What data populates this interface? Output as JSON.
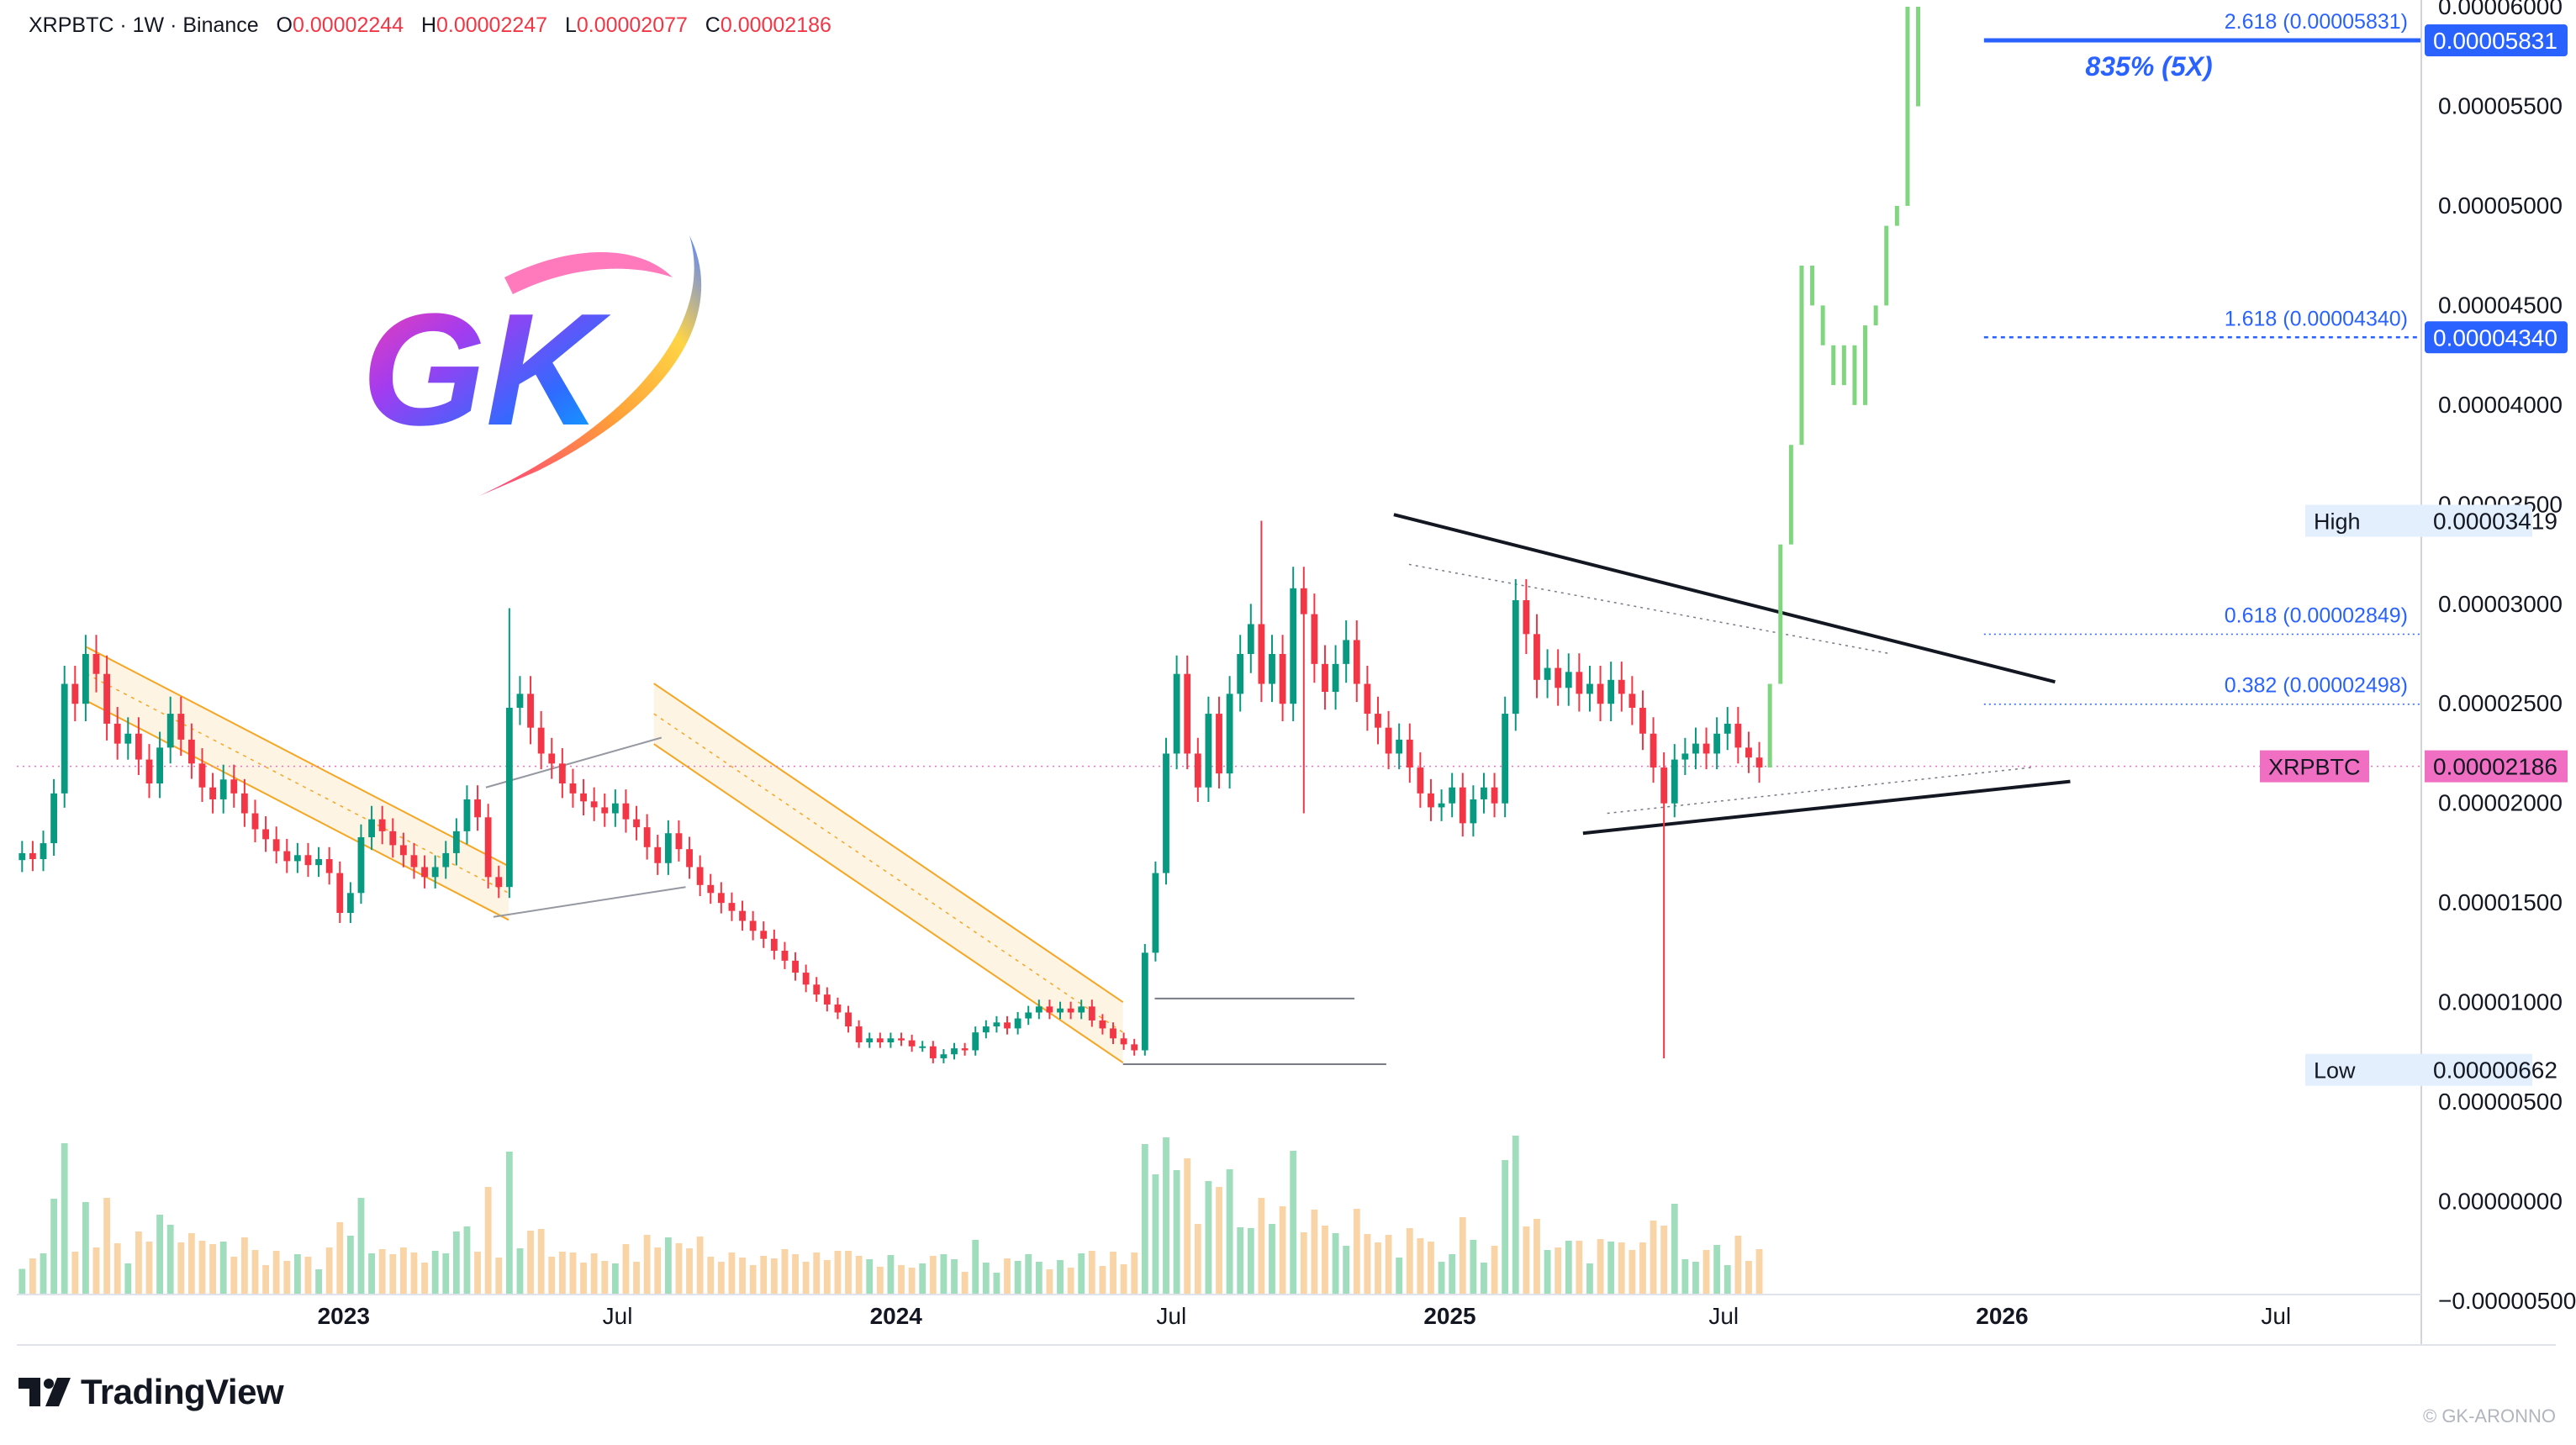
{
  "header": {
    "symbol": "XRPBTC",
    "separator1": " · ",
    "interval": "1W",
    "separator2": " · ",
    "exchange": "Binance",
    "open_label": "O",
    "open": "0.00002244",
    "high_label": "H",
    "high": "0.00002247",
    "low_label": "L",
    "low": "0.00002077",
    "close_label": "C",
    "close": "0.00002186"
  },
  "logo": {
    "text": "GK"
  },
  "brand": {
    "name": "TradingView"
  },
  "watermark": "© GK-ARONNO",
  "colors": {
    "up": "#089981",
    "down": "#f23645",
    "projection": "#7fd67f",
    "fib": "#2962ff",
    "channel": "#f5a623",
    "price_badge": "#f06fc3"
  },
  "chart_data": {
    "type": "candlestick",
    "title": "",
    "interval": "1W",
    "y_axis": {
      "min": -5e-06,
      "max": 6e-05,
      "ticks": [
        "0.00006000",
        "0.00005500",
        "0.00005000",
        "0.00004500",
        "0.00004000",
        "0.00003500",
        "0.00003000",
        "0.00002500",
        "0.00002000",
        "0.00001500",
        "0.00001000",
        "0.00000500",
        "0.00000000",
        "−0.00000500"
      ],
      "tick_values": [
        6e-05,
        5.5e-05,
        5e-05,
        4.5e-05,
        4e-05,
        3.5e-05,
        3e-05,
        2.5e-05,
        2e-05,
        1.5e-05,
        1e-05,
        5e-06,
        0,
        -5e-06
      ]
    },
    "x_axis": {
      "start": "2022-05-30",
      "end": "2026-10-05",
      "ticks": [
        {
          "label": "2023",
          "date": "2023-01-01",
          "bold": true
        },
        {
          "label": "Jul",
          "date": "2023-07-01",
          "bold": false
        },
        {
          "label": "2024",
          "date": "2024-01-01",
          "bold": true
        },
        {
          "label": "Jul",
          "date": "2024-07-01",
          "bold": false
        },
        {
          "label": "2025",
          "date": "2025-01-01",
          "bold": true
        },
        {
          "label": "Jul",
          "date": "2025-07-01",
          "bold": false
        },
        {
          "label": "2026",
          "date": "2026-01-01",
          "bold": true
        },
        {
          "label": "Jul",
          "date": "2026-07-01",
          "bold": false
        }
      ]
    },
    "price_labels": [
      {
        "label": "High",
        "value": "0.00003419",
        "price": 3.419e-05,
        "style": "extreme"
      },
      {
        "label": "XRPBTC",
        "value": "0.00002186",
        "price": 2.186e-05,
        "style": "current"
      },
      {
        "label": "Low",
        "value": "0.00000662",
        "price": 6.62e-06,
        "style": "extreme"
      }
    ],
    "fib_levels": [
      {
        "text": "2.618 (0.00005831)",
        "ratio": "2.618",
        "price": 5.831e-05,
        "badge": "0.00005831",
        "weight": "major"
      },
      {
        "text": "1.618 (0.00004340)",
        "ratio": "1.618",
        "price": 4.34e-05,
        "badge": "0.00004340",
        "weight": "dashed"
      },
      {
        "text": "0.618 (0.00002849)",
        "ratio": "0.618",
        "price": 2.849e-05,
        "badge": "",
        "weight": "dotted"
      },
      {
        "text": "0.382 (0.00002498)",
        "ratio": "0.382",
        "price": 2.498e-05,
        "badge": "",
        "weight": "dotted"
      }
    ],
    "annotation": "835% (5X)",
    "weekly_closes": [
      1.75e-05,
      1.72e-05,
      1.8e-05,
      2.05e-05,
      2.6e-05,
      2.5e-05,
      2.75e-05,
      2.65e-05,
      2.4e-05,
      2.3e-05,
      2.35e-05,
      2.22e-05,
      2.1e-05,
      2.28e-05,
      2.45e-05,
      2.32e-05,
      2.2e-05,
      2.08e-05,
      2.02e-05,
      2.12e-05,
      2.05e-05,
      1.95e-05,
      1.87e-05,
      1.82e-05,
      1.76e-05,
      1.71e-05,
      1.74e-05,
      1.69e-05,
      1.72e-05,
      1.65e-05,
      1.45e-05,
      1.55e-05,
      1.83e-05,
      1.92e-05,
      1.86e-05,
      1.79e-05,
      1.74e-05,
      1.68e-05,
      1.63e-05,
      1.68e-05,
      1.75e-05,
      1.86e-05,
      2.02e-05,
      1.93e-05,
      1.63e-05,
      1.58e-05,
      2.48e-05,
      2.55e-05,
      2.38e-05,
      2.25e-05,
      2.2e-05,
      2.1e-05,
      2.05e-05,
      2.01e-05,
      1.98e-05,
      1.95e-05,
      2e-05,
      1.92e-05,
      1.88e-05,
      1.78e-05,
      1.7e-05,
      1.85e-05,
      1.77e-05,
      1.68e-05,
      1.59e-05,
      1.55e-05,
      1.5e-05,
      1.46e-05,
      1.41e-05,
      1.36e-05,
      1.32e-05,
      1.26e-05,
      1.21e-05,
      1.15e-05,
      1.09e-05,
      1.04e-05,
      9.9e-06,
      9.5e-06,
      8.8e-06,
      8e-06,
      8.2e-06,
      8e-06,
      8.2e-06,
      8.1e-06,
      7.8e-06,
      7.8e-06,
      7.2e-06,
      7.4e-06,
      7.7e-06,
      7.6e-06,
      8.5e-06,
      8.8e-06,
      9e-06,
      8.7e-06,
      9.2e-06,
      9.5e-06,
      9.8e-06,
      9.5e-06,
      9.7e-06,
      9.5e-06,
      9.8e-06,
      9.1e-06,
      8.7e-06,
      8.2e-06,
      7.9e-06,
      7.6e-06,
      1.25e-05,
      1.65e-05,
      2.25e-05,
      2.65e-05,
      2.25e-05,
      2.08e-05,
      2.45e-05,
      2.15e-05,
      2.55e-05,
      2.75e-05,
      2.9e-05,
      2.6e-05,
      2.75e-05,
      2.5e-05,
      3.08e-05,
      2.95e-05,
      2.7e-05,
      2.56e-05,
      2.7e-05,
      2.82e-05,
      2.6e-05,
      2.45e-05,
      2.38e-05,
      2.25e-05,
      2.32e-05,
      2.18e-05,
      2.05e-05,
      1.98e-05,
      2e-05,
      2.08e-05,
      1.9e-05,
      2.02e-05,
      2.08e-05,
      2e-05,
      2.45e-05,
      3.02e-05,
      2.85e-05,
      2.62e-05,
      2.68e-05,
      2.58e-05,
      2.66e-05,
      2.55e-05,
      2.6e-05,
      2.5e-05,
      2.62e-05,
      2.55e-05,
      2.48e-05,
      2.35e-05,
      2.18e-05,
      2e-05,
      2.22e-05,
      2.25e-05,
      2.3e-05,
      2.25e-05,
      2.35e-05,
      2.4e-05,
      2.28e-05,
      2.23e-05,
      2.18e-05
    ],
    "projection_closes": [
      2.6e-05,
      3.3e-05,
      3.8e-05,
      4.7e-05,
      4.5e-05,
      4.3e-05,
      4.1e-05,
      4.3e-05,
      4e-05,
      4.4e-05,
      4.5e-05,
      4.9e-05,
      5e-05,
      6e-05,
      5.5e-05
    ],
    "patterns": [
      "descending channel",
      "descending channel",
      "range",
      "symmetrical triangle"
    ]
  }
}
